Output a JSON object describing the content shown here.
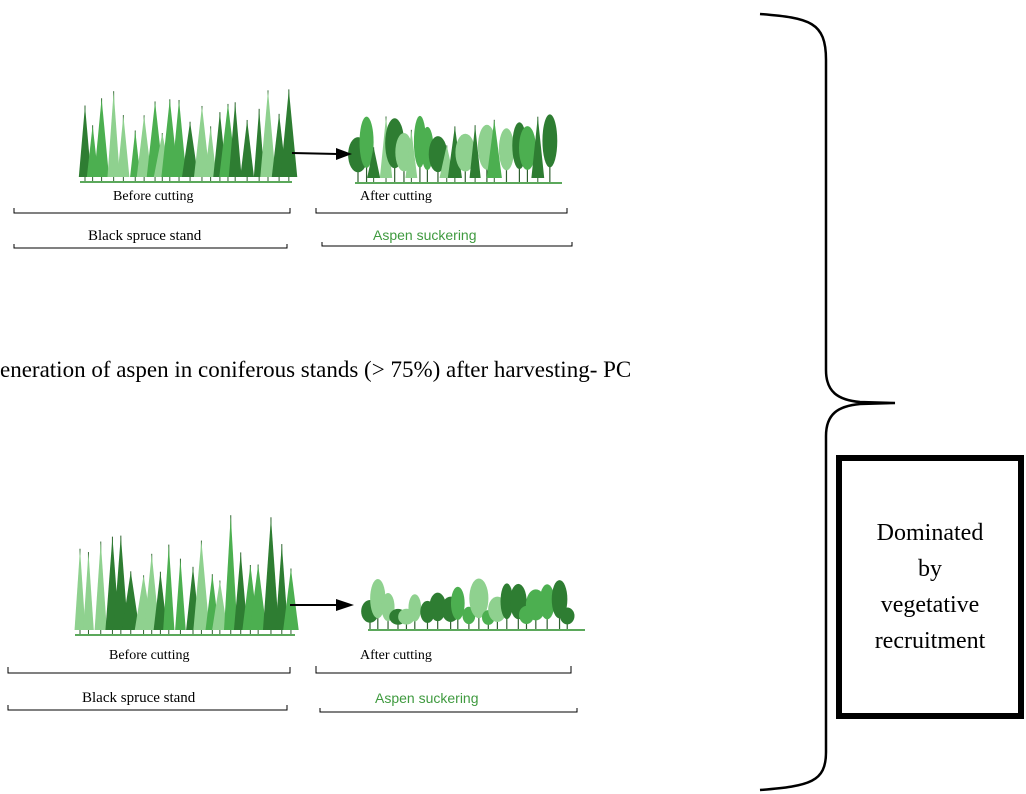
{
  "caption": "eneration of aspen in coniferous stands (> 75%) after harvesting- PC",
  "panels": [
    {
      "before_label": "Before cutting",
      "after_label": "After cutting",
      "stand_label": "Black spruce stand",
      "result_label": "Aspen suckering"
    },
    {
      "before_label": "Before cutting",
      "after_label": "After cutting",
      "stand_label": "Black spruce stand",
      "result_label": "Aspen suckering"
    }
  ],
  "box_lines": [
    "Dominated",
    "by",
    "vegetative",
    "recruitment"
  ],
  "colors": {
    "tree_dark": "#2e7d32",
    "tree_mid": "#4caf50",
    "tree_light": "#8fd18f",
    "aspen_text": "#3f9a3f"
  }
}
